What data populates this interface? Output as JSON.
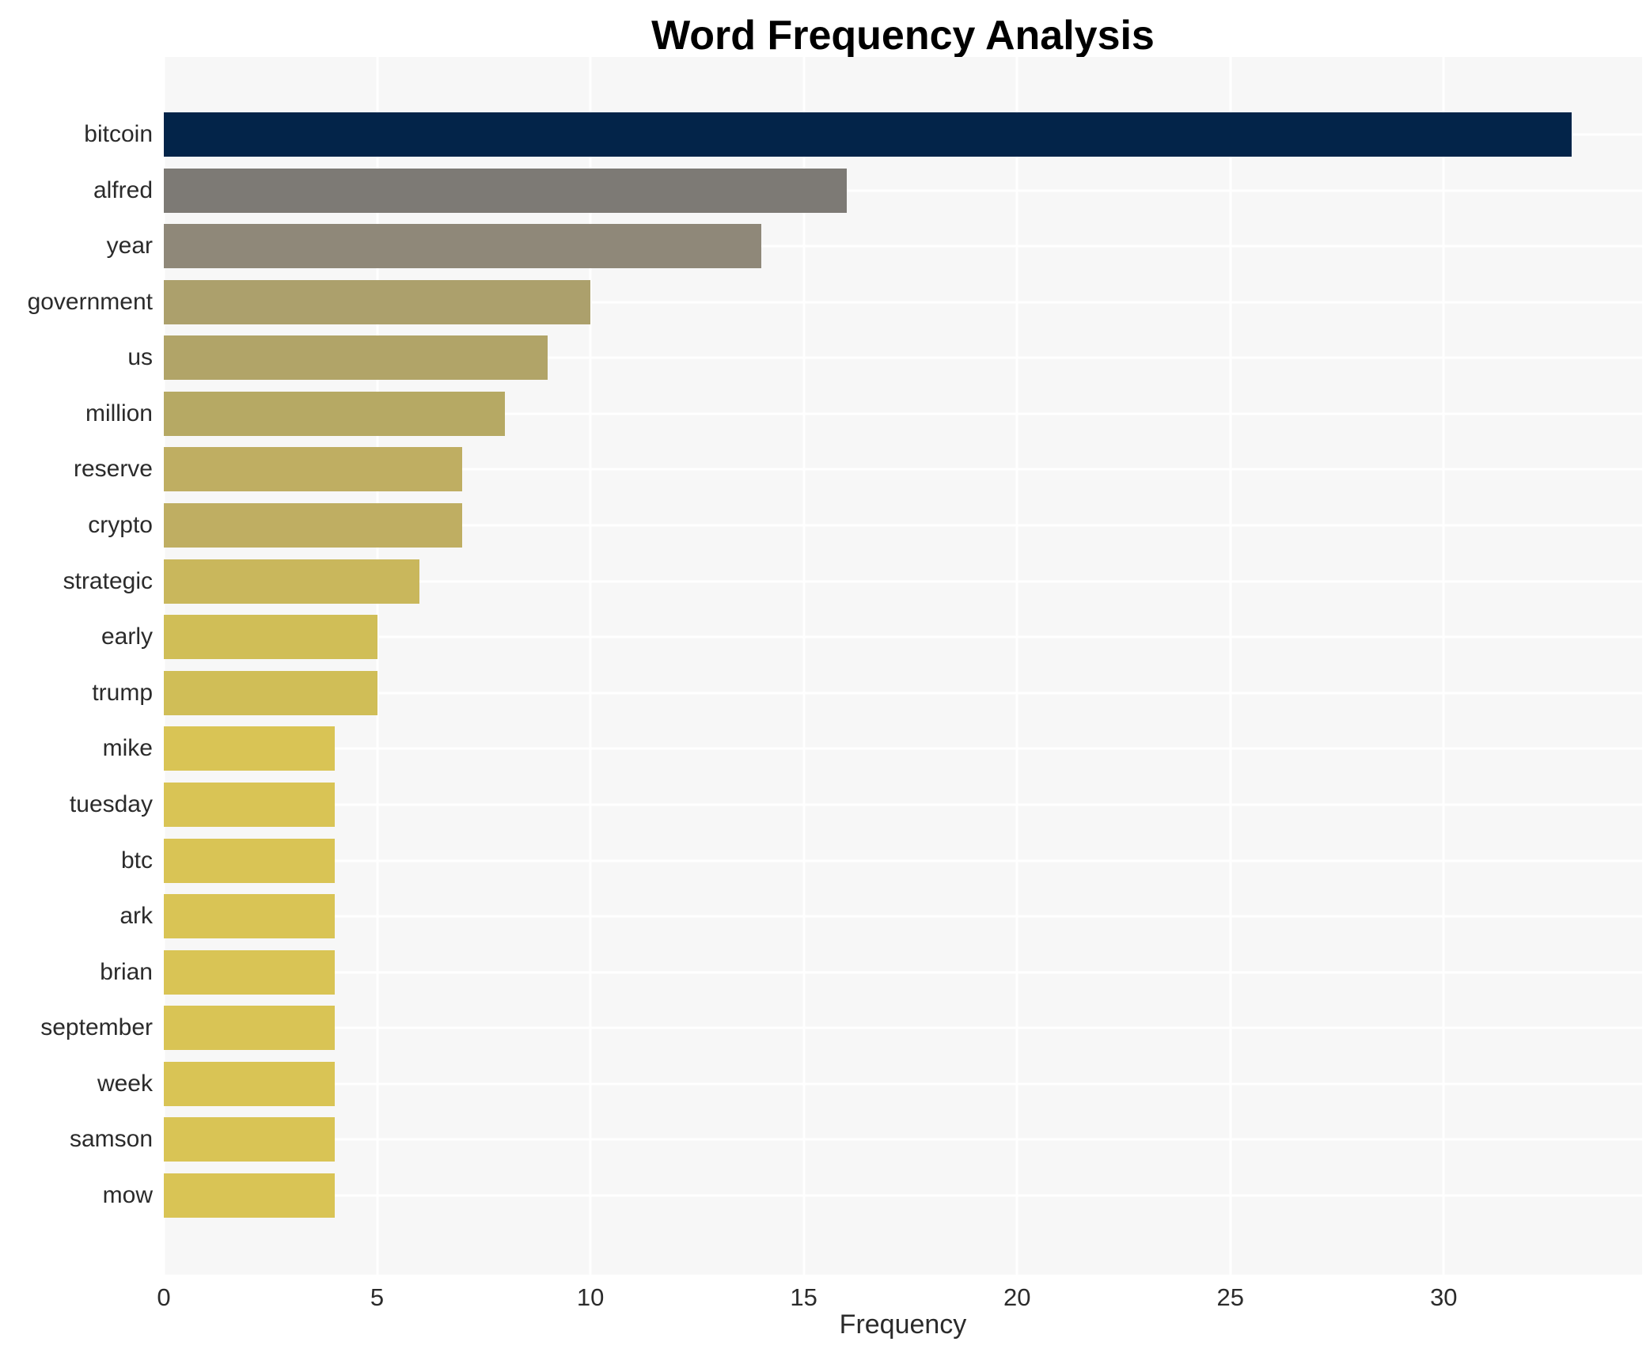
{
  "title": "Word Frequency Analysis",
  "chart_data": {
    "type": "bar",
    "orientation": "horizontal",
    "title": "Word Frequency Analysis",
    "xlabel": "Frequency",
    "ylabel": "",
    "grid": true,
    "legend": false,
    "xlim": [
      0,
      34.65
    ],
    "xticks": [
      0,
      5,
      10,
      15,
      20,
      25,
      30
    ],
    "categories": [
      "bitcoin",
      "alfred",
      "year",
      "government",
      "us",
      "million",
      "reserve",
      "crypto",
      "strategic",
      "early",
      "trump",
      "mike",
      "tuesday",
      "btc",
      "ark",
      "brian",
      "september",
      "week",
      "samson",
      "mow"
    ],
    "values": [
      33,
      16,
      14,
      10,
      9,
      8,
      7,
      7,
      6,
      5,
      5,
      4,
      4,
      4,
      4,
      4,
      4,
      4,
      4,
      4
    ],
    "bar_colors": [
      "#032449",
      "#7d7a75",
      "#8f8879",
      "#aca06c",
      "#b1a468",
      "#b6a964",
      "#bfae62",
      "#bfae62",
      "#c9b75c",
      "#d0be57",
      "#d0be57",
      "#d9c455",
      "#d9c455",
      "#d9c455",
      "#d9c455",
      "#d9c455",
      "#d9c455",
      "#d9c455",
      "#d9c455",
      "#d9c455"
    ],
    "colors": {
      "figure_bg": "#ffffff",
      "plot_bg": "#f7f7f7",
      "grid": "#ffffff",
      "text": "#2b2b2b",
      "title": "#000000"
    }
  }
}
